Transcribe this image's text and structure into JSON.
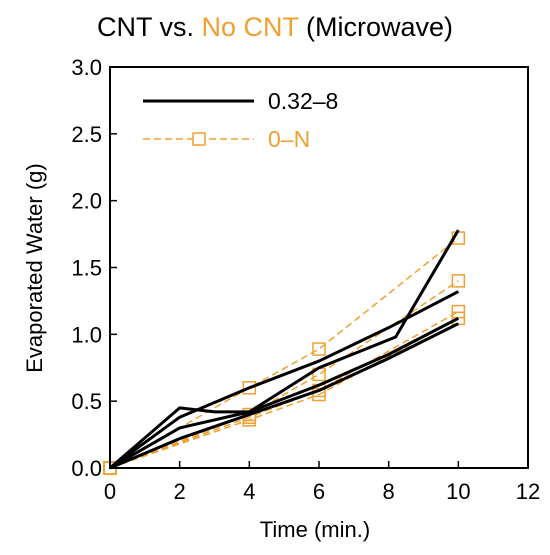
{
  "chart_data": {
    "type": "line",
    "title": {
      "part1": "CNT vs. ",
      "part2": "No CNT",
      "part3": " (Microwave)"
    },
    "xlabel": "Time (min.)",
    "ylabel": "Evaporated Water (g)",
    "xlim": [
      0,
      12
    ],
    "ylim": [
      0,
      3.0
    ],
    "x_ticks": [
      "0",
      "2",
      "4",
      "6",
      "8",
      "10",
      "12"
    ],
    "y_ticks": [
      "0.0",
      "0.5",
      "1.0",
      "1.5",
      "2.0",
      "2.5",
      "3.0"
    ],
    "grid": false,
    "legend_position": "top-left",
    "legend": [
      {
        "label": "0.32–8",
        "color": "#000000",
        "style": "solid"
      },
      {
        "label": "0–N",
        "color": "#f0a030",
        "style": "dashed",
        "marker": "square"
      }
    ],
    "colors": {
      "cnt": "#000000",
      "no_cnt": "#f0a030"
    },
    "series": [
      {
        "group": "0.32–8",
        "x": [
          0,
          2,
          3,
          4,
          6,
          8.2,
          10
        ],
        "y": [
          0.0,
          0.45,
          0.42,
          0.42,
          0.75,
          0.98,
          1.78
        ]
      },
      {
        "group": "0.32–8",
        "x": [
          0,
          2,
          4,
          6,
          8,
          10
        ],
        "y": [
          0.0,
          0.38,
          0.6,
          0.8,
          1.05,
          1.32
        ]
      },
      {
        "group": "0.32–8",
        "x": [
          0,
          2,
          4,
          6,
          8,
          10
        ],
        "y": [
          0.0,
          0.3,
          0.42,
          0.62,
          0.85,
          1.12
        ]
      },
      {
        "group": "0.32–8",
        "x": [
          0,
          2,
          4,
          6,
          8,
          10
        ],
        "y": [
          0.0,
          0.22,
          0.4,
          0.58,
          0.82,
          1.08
        ]
      },
      {
        "group": "0–N",
        "x": [
          0,
          4,
          6,
          10
        ],
        "y": [
          0.0,
          0.6,
          0.89,
          1.72
        ]
      },
      {
        "group": "0–N",
        "x": [
          0,
          4,
          6,
          10
        ],
        "y": [
          0.0,
          0.4,
          0.7,
          1.4
        ]
      },
      {
        "group": "0–N",
        "x": [
          0,
          4,
          6,
          10
        ],
        "y": [
          0.0,
          0.38,
          0.58,
          1.17
        ]
      },
      {
        "group": "0–N",
        "x": [
          0,
          4,
          6,
          10
        ],
        "y": [
          0.0,
          0.36,
          0.55,
          1.12
        ]
      }
    ]
  }
}
